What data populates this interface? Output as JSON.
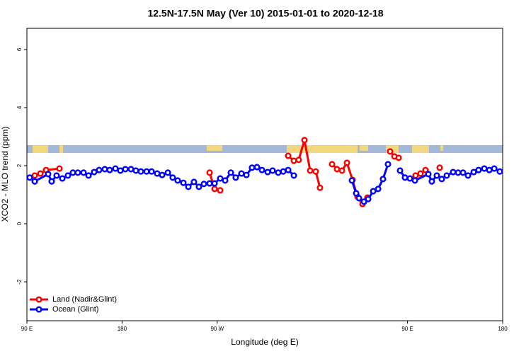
{
  "chart_data": {
    "type": "line",
    "title": "12.5N-17.5N May (Ver 10)   2015-01-01 to 2020-12-18",
    "x_label": "Longitude (deg E)",
    "y_label": "XCO2 - MLO trend (ppm)",
    "xlim": [
      90,
      540
    ],
    "xticks": [
      {
        "value": 90,
        "label": "90 E"
      },
      180,
      {
        "value": 270,
        "label": "90 W"
      },
      {
        "value": 450,
        "label": "90 E"
      },
      {
        "value": 540,
        "label": "180"
      }
    ],
    "ylim": [
      -3.34,
      6.73
    ],
    "yticks": [
      -2,
      0,
      2,
      4,
      6
    ],
    "legend": "bottom-left",
    "series": [
      {
        "name": "Land (Nadir&Glint)",
        "color": "#ff0000",
        "x": [
          97.4,
          102.7,
          108.1,
          120.8,
          null,
          262.8,
          267.5,
          272.8,
          null,
          337.1,
          342.5,
          347.1,
          352.5,
          357.9,
          363.2,
          367.2,
          null,
          378.6,
          383.3,
          388.0,
          392.7,
          398.0,
          402.7,
          407.4,
          412.1,
          null,
          433.5,
          437.6,
          441.6,
          null,
          457.6,
          462.3,
          467.0,
          null,
          480.4
        ],
        "values": [
          1.66,
          1.73,
          1.85,
          1.9,
          null,
          1.76,
          1.2,
          1.15,
          null,
          2.34,
          2.17,
          2.2,
          2.88,
          1.83,
          1.8,
          1.24,
          null,
          2.05,
          1.88,
          1.83,
          2.1,
          1.51,
          0.93,
          0.68,
          0.9,
          null,
          2.49,
          2.32,
          2.27,
          null,
          1.66,
          1.73,
          1.85,
          null,
          1.93
        ]
      },
      {
        "name": "Ocean (Glint)",
        "color": "#0000ff",
        "x": [
          92.7,
          97.4,
          110.1,
          113.4,
          118.1,
          123.5,
          128.8,
          133.5,
          138.2,
          143.6,
          148.3,
          153.6,
          158.3,
          163.7,
          168.3,
          173.7,
          178.4,
          183.1,
          188.4,
          193.1,
          197.8,
          203.2,
          207.9,
          213.2,
          217.9,
          223.3,
          227.9,
          232.6,
          238.0,
          242.7,
          248.0,
          252.7,
          257.4,
          262.8,
          267.5,
          272.8,
          277.5,
          282.9,
          287.5,
          292.9,
          297.6,
          302.9,
          307.6,
          312.3,
          317.7,
          322.4,
          327.7,
          332.4,
          337.1,
          342.5,
          null,
          397.4,
          401.4,
          404.1,
          408.8,
          412.8,
          417.5,
          422.2,
          426.8,
          431.5,
          null,
          442.9,
          447.6,
          452.3,
          457.0,
          469.7,
          473.0,
          477.7,
          482.4,
          487.1,
          493.1,
          497.8,
          502.5,
          507.2,
          512.6,
          517.2,
          522.6,
          527.3,
          532.0,
          537.3
        ],
        "values": [
          1.59,
          1.46,
          1.71,
          1.46,
          1.66,
          1.56,
          1.66,
          1.76,
          1.76,
          1.76,
          1.66,
          1.78,
          1.85,
          1.88,
          1.85,
          1.9,
          1.83,
          1.88,
          1.88,
          1.83,
          1.8,
          1.8,
          1.8,
          1.73,
          1.68,
          1.76,
          1.59,
          1.49,
          1.41,
          1.27,
          1.44,
          1.27,
          1.37,
          1.39,
          1.39,
          1.56,
          1.49,
          1.76,
          1.59,
          1.73,
          1.68,
          1.93,
          1.95,
          1.85,
          1.78,
          1.83,
          1.76,
          1.8,
          1.85,
          1.66,
          null,
          1.49,
          1.05,
          0.88,
          0.76,
          0.85,
          1.12,
          1.2,
          1.54,
          2.05,
          null,
          1.83,
          1.59,
          1.56,
          1.49,
          1.71,
          1.46,
          1.66,
          1.54,
          1.66,
          1.78,
          1.76,
          1.76,
          1.66,
          1.78,
          1.85,
          1.9,
          1.85,
          1.9,
          1.8
        ]
      }
    ]
  }
}
